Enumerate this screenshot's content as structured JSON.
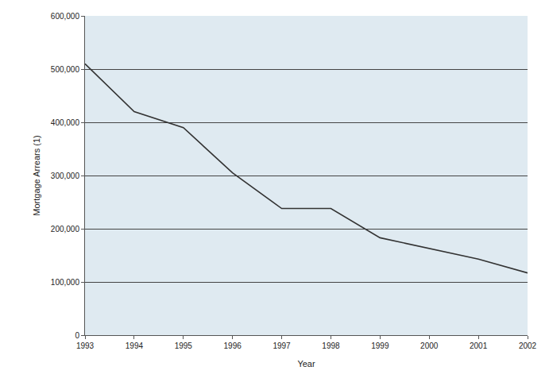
{
  "chart_data": {
    "type": "line",
    "x_label": "Year",
    "y_label": "Mortgage Arrears (1)",
    "x": [
      1993,
      1994,
      1995,
      1996,
      1997,
      1998,
      1999,
      2000,
      2001,
      2002
    ],
    "values": [
      510000,
      420000,
      390000,
      305000,
      238000,
      238000,
      183000,
      163000,
      143000,
      117000
    ],
    "color": "#333333",
    "xlim": [
      1993,
      2002
    ],
    "xticks": [
      1993,
      1994,
      1995,
      1996,
      1997,
      1998,
      1999,
      2000,
      2001,
      2002
    ],
    "ylim": [
      0,
      600000
    ],
    "yticks": [
      0,
      {
        "value": 100000,
        "label": "100,000"
      },
      {
        "value": 200000,
        "label": "200,000"
      },
      {
        "value": 300000,
        "label": "300,000"
      },
      {
        "value": 400000,
        "label": "400,000"
      },
      {
        "value": 500000,
        "label": "500,000"
      },
      {
        "value": 600000,
        "label": "600,000"
      }
    ],
    "grid": true
  }
}
